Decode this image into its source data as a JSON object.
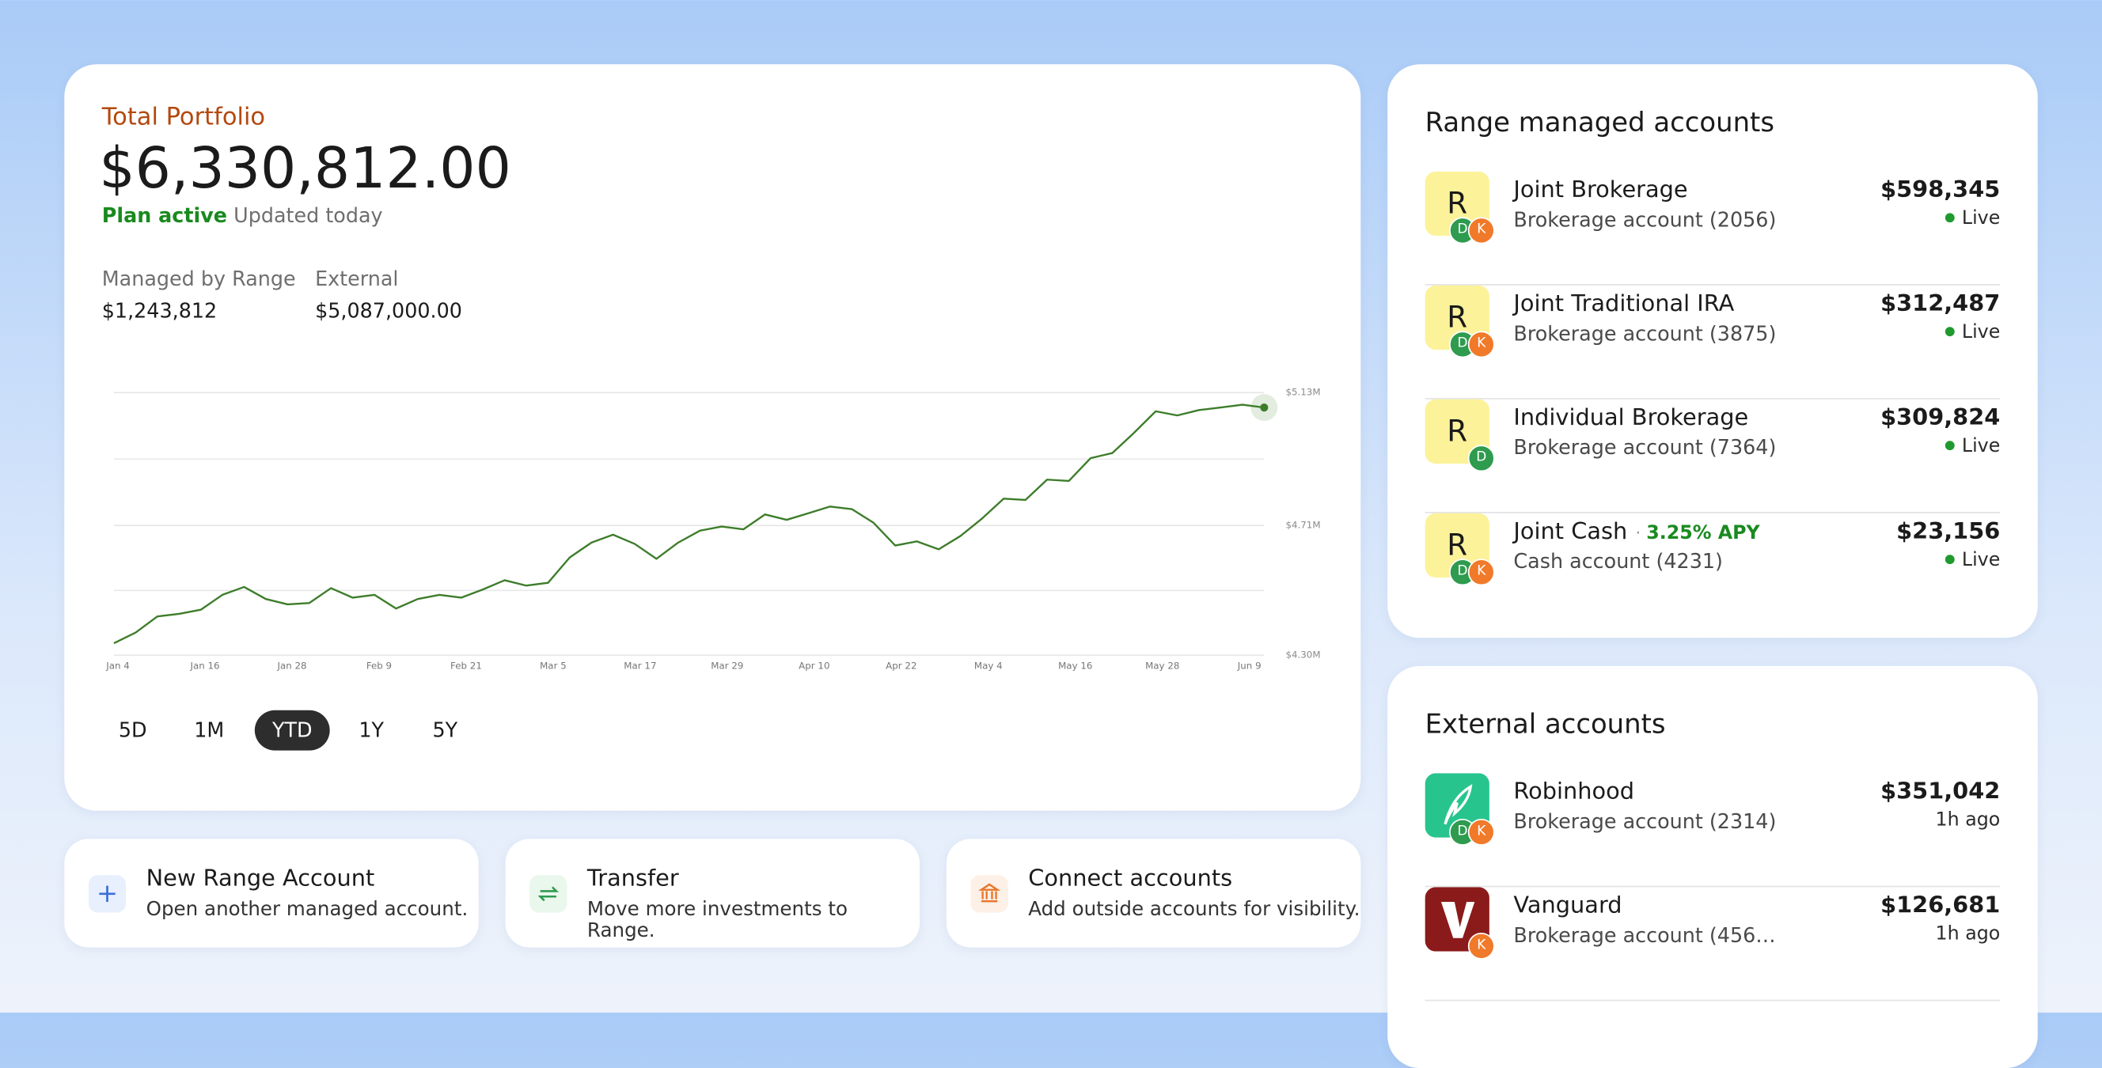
{
  "portfolio": {
    "label": "Total Portfolio",
    "total": "$6,330,812.00",
    "status": "Plan active",
    "updated": "Updated today",
    "breakdown": [
      {
        "label": "Managed by Range",
        "value": "$1,243,812"
      },
      {
        "label": "External",
        "value": "$5,087,000.00"
      }
    ]
  },
  "chart": {
    "type": "line",
    "color": "#3d7d2a",
    "grid": true,
    "minor_grid": true,
    "x_labels": [
      "Jan 4",
      "Jan 16",
      "Jan 28",
      "Feb 9",
      "Feb 21",
      "Mar 5",
      "Mar 17",
      "Mar 29",
      "Apr 10",
      "Apr 22",
      "May 4",
      "May 16",
      "May 28",
      "Jun 9"
    ],
    "values": [
      4338000,
      4372000,
      4423000,
      4431000,
      4444000,
      4491000,
      4516000,
      4478000,
      4461000,
      4465000,
      4512000,
      4482000,
      4491000,
      4448000,
      4478000,
      4491000,
      4482000,
      4508000,
      4537000,
      4520000,
      4529000,
      4609000,
      4656000,
      4681000,
      4652000,
      4605000,
      4656000,
      4694000,
      4707000,
      4698000,
      4745000,
      4728000,
      4749000,
      4770000,
      4762000,
      4719000,
      4647000,
      4660000,
      4635000,
      4677000,
      4732000,
      4795000,
      4791000,
      4855000,
      4851000,
      4923000,
      4939000,
      5003000,
      5071000,
      5058000,
      5075000,
      5083000,
      5092000,
      5083000
    ],
    "ylim": [
      4300000,
      5130000
    ],
    "yticks": [
      {
        "value": 4300000,
        "label": "$4.30M"
      },
      {
        "value": 4710000,
        "label": "$4.71M"
      },
      {
        "value": 5130000,
        "label": "$5.13M"
      }
    ]
  },
  "periods": [
    "5D",
    "1M",
    "YTD",
    "1Y",
    "5Y"
  ],
  "selected_period": 2,
  "actions": [
    {
      "title": "New Range Account",
      "description": "Open another managed account."
    },
    {
      "title": "Transfer",
      "description": "Move more investments to Range."
    },
    {
      "title": "Connect accounts",
      "description": "Add outside accounts for visibility."
    }
  ],
  "managed_accounts": {
    "title": "Range managed accounts",
    "accounts": [
      {
        "badge": "R",
        "owners": [
          "D",
          "K"
        ],
        "name": "Joint Brokerage",
        "subtitle": "Brokerage account (2056)",
        "balance": "$598,345",
        "status": "Live"
      },
      {
        "badge": "R",
        "owners": [
          "D",
          "K"
        ],
        "name": "Joint Traditional IRA",
        "subtitle": "Brokerage account (3875)",
        "balance": "$312,487",
        "status": "Live"
      },
      {
        "badge": "R",
        "owners": [
          "D"
        ],
        "name": "Individual Brokerage",
        "subtitle": "Brokerage account (7364)",
        "balance": "$309,824",
        "status": "Live"
      },
      {
        "badge": "R",
        "owners": [
          "D",
          "K"
        ],
        "name": "Joint Cash",
        "apy": "3.25% APY",
        "subtitle": "Cash account (4231)",
        "balance": "$23,156",
        "status": "Live"
      }
    ]
  },
  "external_accounts": {
    "title": "External accounts",
    "accounts": [
      {
        "logo": "robinhood",
        "owners": [
          "D",
          "K"
        ],
        "name": "Robinhood",
        "subtitle": "Brokerage account (2314)",
        "balance": "$351,042",
        "updated": "1h ago"
      },
      {
        "logo": "vanguard",
        "owners": [
          "K"
        ],
        "name": "Vanguard",
        "subtitle": "Brokerage account (456…",
        "balance": "$126,681",
        "updated": "1h ago"
      }
    ]
  }
}
